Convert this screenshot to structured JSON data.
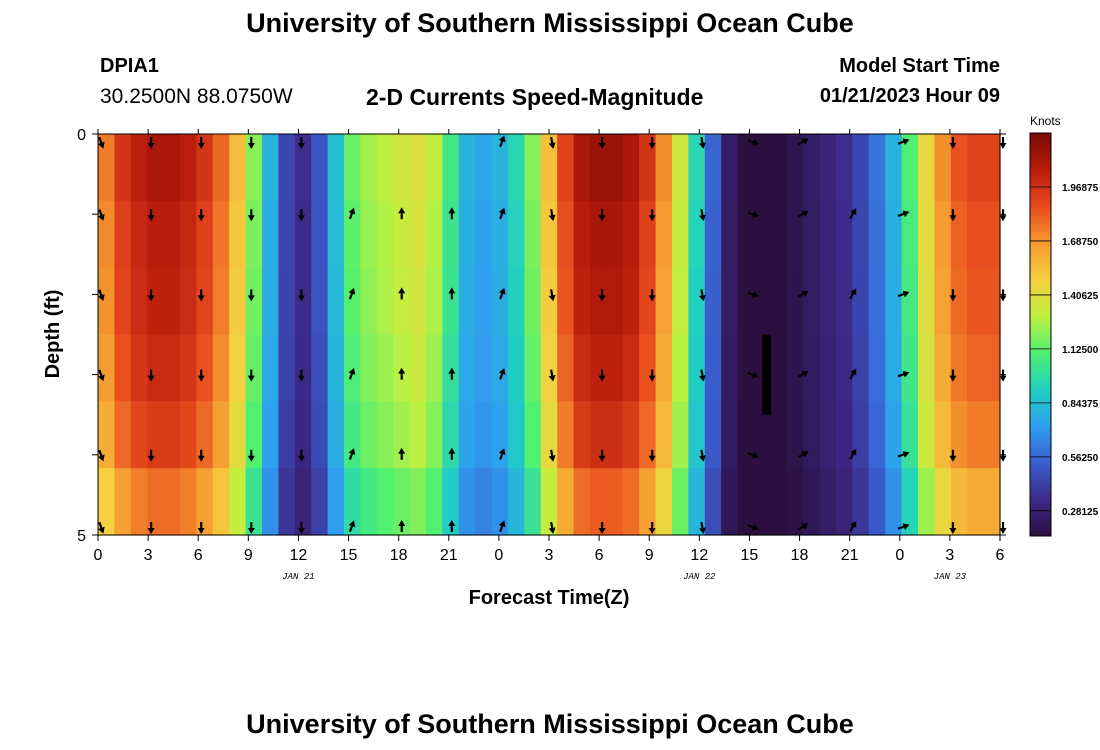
{
  "header": {
    "title": "University of Southern Mississippi Ocean Cube",
    "station_id": "DPIA1",
    "coordinates": "30.2500N  88.0750W",
    "subtitle": "2-D Currents Speed-Magnitude",
    "model_start_label": "Model Start Time",
    "model_start_value": "01/21/2023 Hour 09"
  },
  "footer": {
    "title": "University of Southern Mississippi Ocean Cube"
  },
  "colors": {
    "colormap": [
      "#2a0f3f",
      "#3d2a8a",
      "#3a5fd0",
      "#2fa0f0",
      "#20d0c0",
      "#50f070",
      "#c0f040",
      "#f5d040",
      "#f59a30",
      "#e84a1e",
      "#b81c0c",
      "#7a0a04"
    ],
    "arrow": "#000000",
    "marker": "#000000"
  },
  "chart_data": {
    "type": "heatmap",
    "title": "2-D Currents Speed-Magnitude",
    "xlabel": "Forecast Time(Z)",
    "ylabel": "Depth (ft)",
    "ylim": [
      0,
      5
    ],
    "y_tick_labels": [
      "0",
      "5"
    ],
    "x_tick_labels": [
      "0",
      "3",
      "6",
      "9",
      "12",
      "15",
      "18",
      "21",
      "0",
      "3",
      "6",
      "9",
      "12",
      "15",
      "18",
      "21",
      "0",
      "3",
      "6"
    ],
    "date_labels": [
      {
        "label": "JAN 21",
        "at_hour": 12
      },
      {
        "label": "JAN 22",
        "at_hour": 36
      },
      {
        "label": "JAN 23",
        "at_hour": 51
      }
    ],
    "hours": [
      0,
      1,
      2,
      3,
      4,
      5,
      6,
      7,
      8,
      9,
      10,
      11,
      12,
      13,
      14,
      15,
      16,
      17,
      18,
      19,
      20,
      21,
      22,
      23,
      24,
      25,
      26,
      27,
      28,
      29,
      30,
      31,
      32,
      33,
      34,
      35,
      36,
      37,
      38,
      39,
      40,
      41,
      42,
      43,
      44,
      45,
      46,
      47,
      48,
      49,
      50,
      51,
      52,
      53,
      54
    ],
    "speed_knots_surface": [
      1.75,
      1.95,
      2.05,
      2.1,
      2.1,
      2.05,
      1.95,
      1.8,
      1.55,
      1.2,
      0.8,
      0.45,
      0.35,
      0.5,
      0.85,
      1.15,
      1.25,
      1.3,
      1.35,
      1.4,
      1.3,
      1.05,
      0.8,
      0.75,
      0.8,
      0.95,
      1.2,
      1.55,
      1.9,
      2.1,
      2.15,
      2.15,
      2.1,
      1.95,
      1.7,
      1.35,
      0.95,
      0.55,
      0.25,
      0.12,
      0.1,
      0.15,
      0.2,
      0.25,
      0.3,
      0.35,
      0.45,
      0.6,
      0.8,
      1.1,
      1.45,
      1.7,
      1.85,
      1.9,
      1.9
    ],
    "depth_factor": [
      1.0,
      0.98,
      0.97,
      0.95,
      0.92,
      0.85
    ],
    "arrow_depths": [
      0,
      1,
      2,
      3,
      4,
      5
    ],
    "arrow_hours": [
      0,
      3,
      6,
      9,
      12,
      15,
      18,
      21,
      24,
      27,
      30,
      33,
      36,
      39,
      42,
      45,
      48,
      51,
      54
    ],
    "arrow_directions_deg": [
      160,
      180,
      180,
      180,
      180,
      20,
      0,
      0,
      20,
      170,
      180,
      180,
      170,
      110,
      60,
      30,
      70,
      180,
      180
    ],
    "arrow_surface_missing_hours": [
      15,
      18,
      21,
      45
    ],
    "colorbar": {
      "label": "Knots",
      "min": 0.15,
      "max": 2.25,
      "tick_labels": [
        "1.96875",
        "1.68750",
        "1.40625",
        "1.12500",
        "0.84375",
        "0.56250",
        "0.28125"
      ],
      "tick_values": [
        1.96875,
        1.6875,
        1.40625,
        1.125,
        0.84375,
        0.5625,
        0.28125
      ]
    },
    "marker": {
      "at_hour": 40,
      "from_depth": 2.5,
      "to_depth": 3.5
    }
  }
}
